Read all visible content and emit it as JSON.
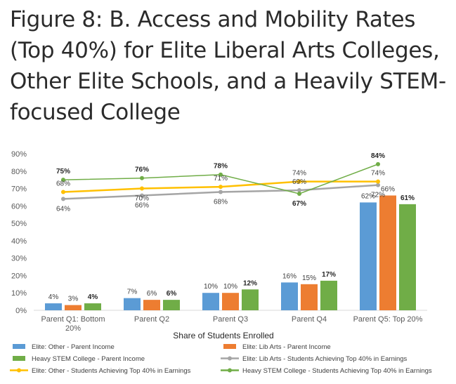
{
  "title": "Figure 8: B. Access and Mobility Rates (Top 40%) for Elite Liberal Arts Colleges, Other Elite Schools, and a Heavily STEM-focused College",
  "chart_data": {
    "type": "bar",
    "categories": [
      "Parent Q1: Bottom 20%",
      "Parent Q2",
      "Parent Q3",
      "Parent Q4",
      "Parent Q5: Top 20%"
    ],
    "category_lines": [
      [
        "Parent Q1: Bottom",
        "20%"
      ],
      [
        "Parent Q2"
      ],
      [
        "Parent Q3"
      ],
      [
        "Parent Q4"
      ],
      [
        "Parent Q5: Top 20%"
      ]
    ],
    "xlabel": "Share of Students Enrolled",
    "ylabel": "",
    "ylim": [
      0,
      90
    ],
    "yticks": [
      0,
      10,
      20,
      30,
      40,
      50,
      60,
      70,
      80,
      90
    ],
    "ytick_labels": [
      "0%",
      "10%",
      "20%",
      "30%",
      "40%",
      "50%",
      "60%",
      "70%",
      "80%",
      "90%"
    ],
    "grid": false,
    "legend_position": "bottom",
    "bar_series": [
      {
        "name": "Elite: Other - Parent Income",
        "color": "#5B9BD5",
        "values": [
          4,
          7,
          10,
          16,
          62
        ],
        "labels": [
          "4%",
          "7%",
          "10%",
          "16%",
          "62%"
        ]
      },
      {
        "name": "Elite: Lib Arts - Parent Income",
        "color": "#ED7D31",
        "values": [
          3,
          6,
          10,
          15,
          66
        ],
        "labels": [
          "3%",
          "6%",
          "10%",
          "15%",
          "66%"
        ]
      },
      {
        "name": "Heavy STEM College - Parent Income",
        "color": "#70AD47",
        "values": [
          4,
          6,
          12,
          17,
          61
        ],
        "labels": [
          "4%",
          "6%",
          "12%",
          "17%",
          "61%"
        ]
      }
    ],
    "line_series": [
      {
        "name": "Elite: Lib Arts - Students Achieving Top 40% in Earnings",
        "color": "#A5A5A5",
        "values": [
          64,
          66,
          68,
          69,
          72
        ],
        "labels": [
          "64%",
          "66%",
          "68%",
          "69%",
          "72%"
        ]
      },
      {
        "name": "Elite: Other - Students Achieving Top 40% in Earnings",
        "color": "#FFC000",
        "values": [
          68,
          70,
          71,
          74,
          74
        ],
        "labels": [
          "68%",
          "70%",
          "71%",
          "74%",
          "74%"
        ]
      },
      {
        "name": "Heavy STEM College - Students Achieving Top 40% in Earnings",
        "color": "#70AD47",
        "values": [
          75,
          76,
          78,
          67,
          84
        ],
        "labels": [
          "75%",
          "76%",
          "78%",
          "67%",
          "84%"
        ]
      }
    ],
    "legend_order": [
      "Elite: Other - Parent Income",
      "Elite: Lib Arts - Parent Income",
      "Heavy STEM College - Parent Income",
      "Elite: Lib Arts - Students Achieving Top 40% in Earnings",
      "Elite: Other - Students Achieving Top 40% in Earnings",
      "Heavy STEM College - Students Achieving Top 40% in Earnings"
    ]
  }
}
